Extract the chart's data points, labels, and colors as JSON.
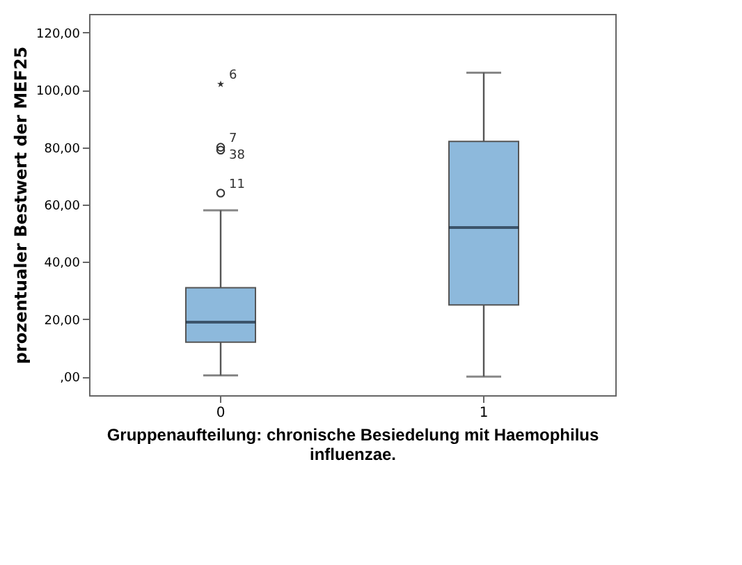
{
  "chart_data": {
    "type": "box",
    "xlabel": "Gruppenaufteilung: chronische Besiedelung mit Haemophilus\ninfluenzae.",
    "ylabel": "prozentualer Bestwert der MEF25",
    "categories": [
      "0",
      "1"
    ],
    "boxes": [
      {
        "low": 0.4,
        "q1": 12,
        "median": 19,
        "q3": 31,
        "high": 58
      },
      {
        "low": 0,
        "q1": 25,
        "median": 52,
        "q3": 82,
        "high": 106
      }
    ],
    "color": "#8db9dc",
    "series": [
      {
        "type": "scatter",
        "marker": "star",
        "color": "#333333",
        "x": [
          "0"
        ],
        "values": [
          102
        ]
      },
      {
        "type": "scatter",
        "marker": "circle",
        "color": "#333333",
        "x": [
          "0",
          "0",
          "0"
        ],
        "values": [
          80,
          79,
          64
        ]
      }
    ],
    "ylim": [
      -6.5,
      126.5
    ],
    "yticks": [
      {
        "value": 0,
        "label": ",00"
      },
      {
        "value": 20,
        "label": "20,00"
      },
      {
        "value": 40,
        "label": "40,00"
      },
      {
        "value": 60,
        "label": "60,00"
      },
      {
        "value": 80,
        "label": "80,00"
      },
      {
        "value": 100,
        "label": "100,00"
      },
      {
        "value": 120,
        "label": "120,00"
      }
    ],
    "grid": false,
    "annotations": [
      {
        "text": "6",
        "x": "0",
        "y": 102
      },
      {
        "text": "7",
        "x": "0",
        "y": 80
      },
      {
        "text": "38",
        "x": "0",
        "y": 79
      },
      {
        "text": "11",
        "x": "0",
        "y": 64
      }
    ]
  }
}
